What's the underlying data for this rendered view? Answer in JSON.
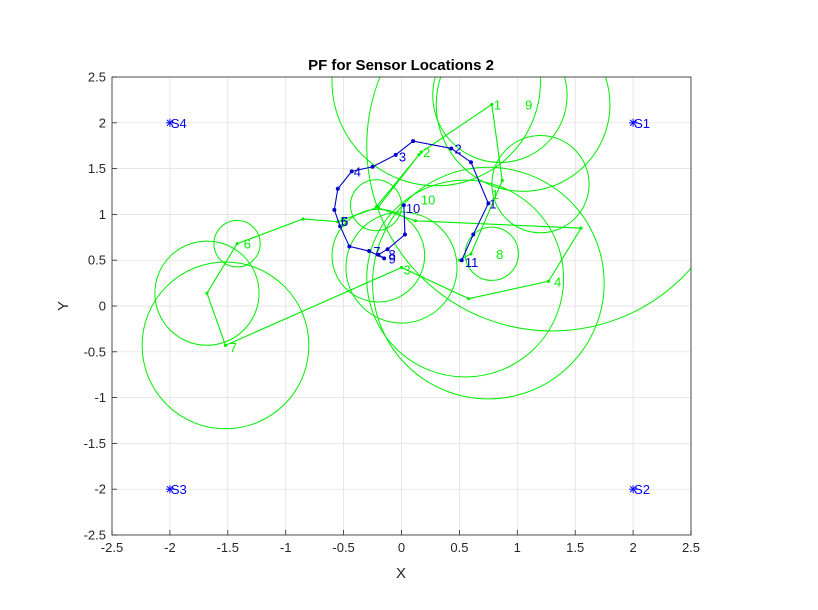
{
  "chart_data": {
    "type": "line",
    "title": "PF for Sensor Locations 2",
    "xlabel": "X",
    "ylabel": "Y",
    "xlim": [
      -2.5,
      2.5
    ],
    "ylim": [
      -2.5,
      2.5
    ],
    "xticks": [
      -2.5,
      -2,
      -1.5,
      -1,
      -0.5,
      0,
      0.5,
      1,
      1.5,
      2,
      2.5
    ],
    "yticks": [
      -2.5,
      -2,
      -1.5,
      -1,
      -0.5,
      0,
      0.5,
      1,
      1.5,
      2,
      2.5
    ],
    "xtick_labels": [
      "-2.5",
      "-2",
      "-1.5",
      "-1",
      "-0.5",
      "0",
      "0.5",
      "1",
      "1.5",
      "2",
      "2.5"
    ],
    "ytick_labels": [
      "-2.5",
      "-2",
      "-1.5",
      "-1",
      "-0.5",
      "0",
      "0.5",
      "1",
      "1.5",
      "2",
      "2.5"
    ],
    "grid": true,
    "colors": {
      "true_path": "#0000cc",
      "estimate": "#00ee00",
      "sensor": "#0000ff",
      "axis": "#262626",
      "grid": "#dddddd"
    },
    "sensors": [
      {
        "label": "S1",
        "x": 2,
        "y": 2
      },
      {
        "label": "S2",
        "x": 2,
        "y": -2
      },
      {
        "label": "S3",
        "x": -2,
        "y": -2
      },
      {
        "label": "S4",
        "x": -2,
        "y": 2
      }
    ],
    "true_path": {
      "points": [
        {
          "x": 0.52,
          "y": 0.5
        },
        {
          "x": 0.62,
          "y": 0.78
        },
        {
          "x": 0.75,
          "y": 1.12
        },
        {
          "x": 0.6,
          "y": 1.57
        },
        {
          "x": 0.43,
          "y": 1.72
        },
        {
          "x": 0.1,
          "y": 1.8
        },
        {
          "x": -0.05,
          "y": 1.65
        },
        {
          "x": -0.25,
          "y": 1.52
        },
        {
          "x": -0.43,
          "y": 1.47
        },
        {
          "x": -0.55,
          "y": 1.28
        },
        {
          "x": -0.58,
          "y": 1.05
        },
        {
          "x": -0.53,
          "y": 0.87
        },
        {
          "x": -0.45,
          "y": 0.65
        },
        {
          "x": -0.28,
          "y": 0.6
        },
        {
          "x": -0.15,
          "y": 0.52
        },
        {
          "x": -0.2,
          "y": 0.56
        },
        {
          "x": -0.12,
          "y": 0.62
        },
        {
          "x": 0.03,
          "y": 0.78
        },
        {
          "x": 0.02,
          "y": 1.1
        }
      ],
      "labels": [
        {
          "text": "1",
          "x": 0.74,
          "y": 1.12
        },
        {
          "text": "2",
          "x": 0.44,
          "y": 1.72
        },
        {
          "text": "3",
          "x": -0.04,
          "y": 1.63
        },
        {
          "text": "4",
          "x": -0.43,
          "y": 1.47
        },
        {
          "text": "5",
          "x": -0.54,
          "y": 0.93
        },
        {
          "text": "6",
          "x": -0.54,
          "y": 0.93
        },
        {
          "text": "7",
          "x": -0.26,
          "y": 0.6
        },
        {
          "text": "8",
          "x": -0.13,
          "y": 0.57
        },
        {
          "text": "9",
          "x": -0.13,
          "y": 0.52
        },
        {
          "text": "10",
          "x": 0.02,
          "y": 1.07
        },
        {
          "text": "11",
          "x": 0.53,
          "y": 0.48
        }
      ]
    },
    "estimates": {
      "points": [
        {
          "x": 0.5,
          "y": 0.5
        },
        {
          "x": 0.6,
          "y": 0.57
        },
        {
          "x": 0.87,
          "y": 1.37
        },
        {
          "x": 0.78,
          "y": 2.2
        },
        {
          "x": 0.17,
          "y": 1.68
        },
        {
          "x": -0.22,
          "y": 1.08
        },
        {
          "x": 0.12,
          "y": 0.93
        },
        {
          "x": 1.55,
          "y": 0.85
        },
        {
          "x": 1.27,
          "y": 0.27
        },
        {
          "x": 0.58,
          "y": 0.08
        },
        {
          "x": 0.0,
          "y": 0.42
        },
        {
          "x": -1.52,
          "y": -0.43
        },
        {
          "x": -1.68,
          "y": 0.14
        },
        {
          "x": -1.42,
          "y": 0.68
        },
        {
          "x": -0.85,
          "y": 0.95
        },
        {
          "x": -0.55,
          "y": 0.92
        },
        {
          "x": -0.2,
          "y": 1.08
        },
        {
          "x": 0.15,
          "y": 1.65
        }
      ],
      "circles": [
        {
          "x": 0.85,
          "y": 2.3,
          "r": 0.58
        },
        {
          "x": 1.05,
          "y": 2.2,
          "r": 0.75
        },
        {
          "x": 0.3,
          "y": 2.45,
          "r": 0.9
        },
        {
          "x": 1.2,
          "y": 1.33,
          "r": 0.42
        },
        {
          "x": 1.3,
          "y": 1.75,
          "r": 1.6
        },
        {
          "x": 0.75,
          "y": 0.25,
          "r": 1.0
        },
        {
          "x": 0.55,
          "y": 0.3,
          "r": 0.85
        },
        {
          "x": 0.78,
          "y": 0.57,
          "r": 0.23
        },
        {
          "x": 0.0,
          "y": 0.42,
          "r": 0.48
        },
        {
          "x": -0.2,
          "y": 0.55,
          "r": 0.4
        },
        {
          "x": -0.22,
          "y": 1.1,
          "r": 0.22
        },
        {
          "x": -1.42,
          "y": 0.68,
          "r": 0.2
        },
        {
          "x": -1.68,
          "y": 0.14,
          "r": 0.45
        },
        {
          "x": -1.52,
          "y": -0.43,
          "r": 0.72
        }
      ],
      "labels": [
        {
          "text": "1",
          "x": 0.78,
          "y": 2.2
        },
        {
          "text": "2",
          "x": 0.17,
          "y": 1.68
        },
        {
          "text": "1",
          "x": 0.76,
          "y": 1.22
        },
        {
          "text": "9",
          "x": 1.05,
          "y": 2.2
        },
        {
          "text": "10",
          "x": 0.15,
          "y": 1.16
        },
        {
          "text": "6",
          "x": -1.38,
          "y": 0.68
        },
        {
          "text": "7",
          "x": -1.5,
          "y": -0.45
        },
        {
          "text": "8",
          "x": 0.8,
          "y": 0.57
        },
        {
          "text": "4",
          "x": 1.3,
          "y": 0.27
        },
        {
          "text": "3",
          "x": 0.0,
          "y": 0.4
        },
        {
          "text": "5",
          "x": -0.55,
          "y": 0.92
        }
      ]
    }
  }
}
